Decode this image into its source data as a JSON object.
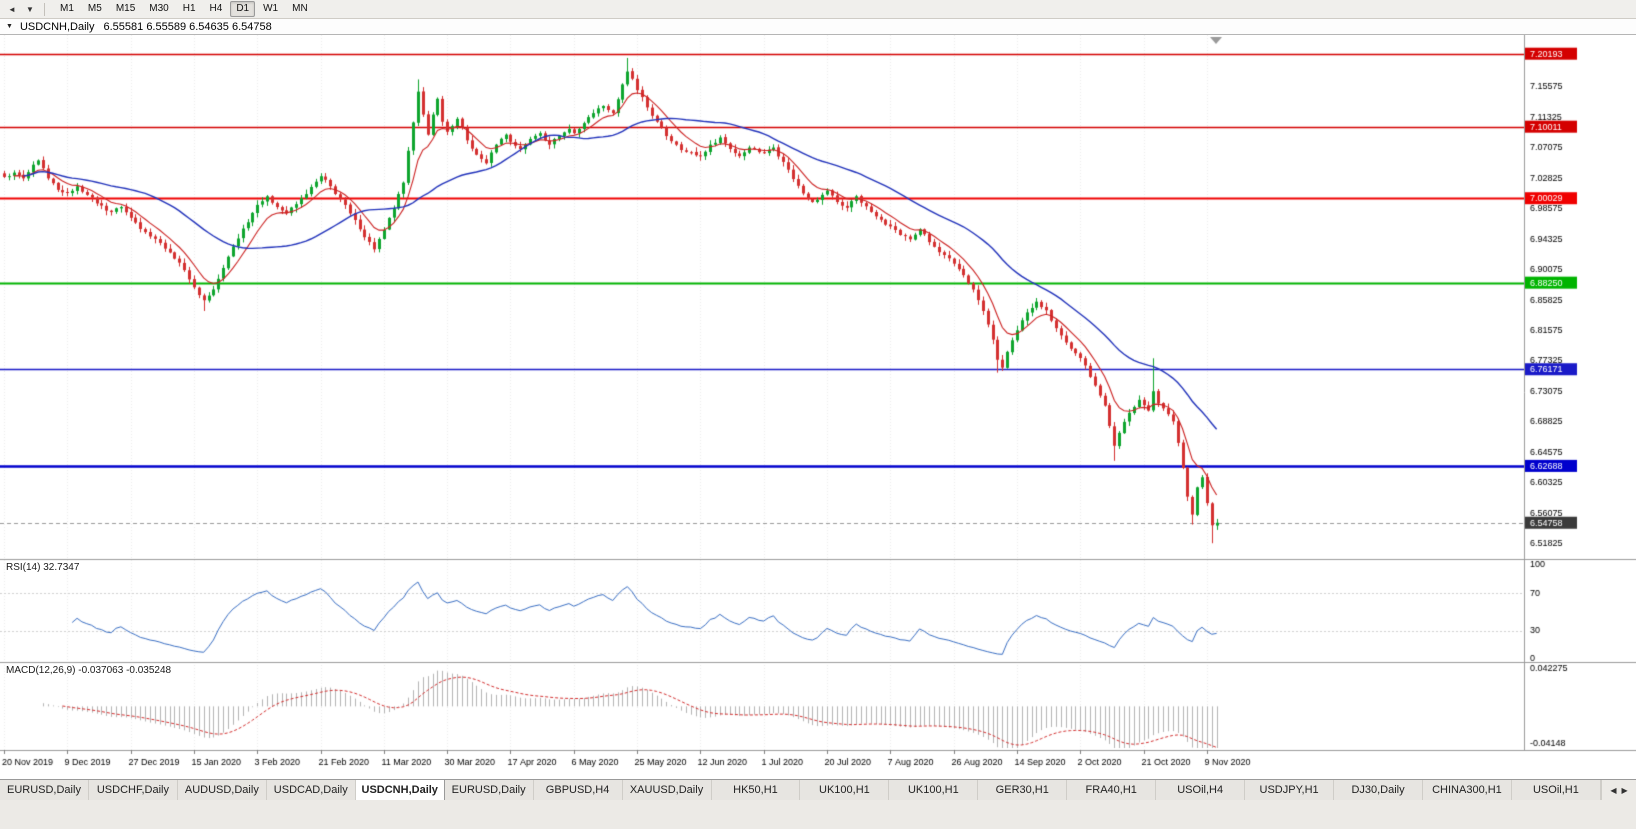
{
  "toolbar": {
    "left_icons": [
      {
        "name": "toolbar-arrow-left-icon",
        "glyph": "◄"
      },
      {
        "name": "toolbar-arrow-down-icon",
        "glyph": "▼"
      }
    ],
    "timeframes": [
      "M1",
      "M5",
      "M15",
      "M30",
      "H1",
      "H4",
      "D1",
      "W1",
      "MN"
    ],
    "active_timeframe": "D1"
  },
  "chart_window": {
    "collapse_icon": "▼",
    "title": "USDCNH,Daily",
    "ohlc": "6.55581 6.55589 6.54635 6.54758"
  },
  "chart_data": {
    "type": "candlestick",
    "symbol": "USDCNH",
    "timeframe": "Daily",
    "days": 250,
    "x_label_step_days": 13,
    "x_labels": [
      "20 Nov 2019",
      "9 Dec 2019",
      "27 Dec 2019",
      "15 Jan 2020",
      "3 Feb 2020",
      "21 Feb 2020",
      "11 Mar 2020",
      "30 Mar 2020",
      "17 Apr 2020",
      "6 May 2020",
      "25 May 2020",
      "12 Jun 2020",
      "1 Jul 2020",
      "20 Jul 2020",
      "7 Aug 2020",
      "26 Aug 2020",
      "14 Sep 2020",
      "2 Oct 2020",
      "21 Oct 2020",
      "9 Nov 2020"
    ],
    "price_range": {
      "top": 7.228,
      "bottom": 6.497
    },
    "y_ticks": [
      "7.15575",
      "7.11325",
      "7.07075",
      "7.02825",
      "6.98575",
      "6.94325",
      "6.90075",
      "6.85825",
      "6.81575",
      "6.77325",
      "6.73075",
      "6.68825",
      "6.64575",
      "6.60325",
      "6.56075",
      "6.51825"
    ],
    "close_anchors": [
      [
        0,
        7.03
      ],
      [
        2,
        7.036
      ],
      [
        4,
        7.028
      ],
      [
        7,
        7.053
      ],
      [
        9,
        7.028
      ],
      [
        11,
        7.012
      ],
      [
        13,
        7.008
      ],
      [
        15,
        7.017
      ],
      [
        17,
        7.005
      ],
      [
        19,
        6.993
      ],
      [
        22,
        6.981
      ],
      [
        24,
        6.988
      ],
      [
        26,
        6.973
      ],
      [
        29,
        6.953
      ],
      [
        32,
        6.938
      ],
      [
        35,
        6.916
      ],
      [
        37,
        6.9
      ],
      [
        39,
        6.876
      ],
      [
        41,
        6.858
      ],
      [
        43,
        6.873
      ],
      [
        45,
        6.903
      ],
      [
        47,
        6.933
      ],
      [
        49,
        6.958
      ],
      [
        52,
        6.991
      ],
      [
        54,
        7.003
      ],
      [
        56,
        6.988
      ],
      [
        58,
        6.979
      ],
      [
        60,
        6.992
      ],
      [
        62,
        7.006
      ],
      [
        65,
        7.031
      ],
      [
        67,
        7.017
      ],
      [
        69,
        6.999
      ],
      [
        71,
        6.979
      ],
      [
        73,
        6.957
      ],
      [
        76,
        6.929
      ],
      [
        78,
        6.956
      ],
      [
        80,
        6.986
      ],
      [
        82,
        7.022
      ],
      [
        84,
        7.106
      ],
      [
        85,
        7.149
      ],
      [
        86,
        7.117
      ],
      [
        87,
        7.089
      ],
      [
        88,
        7.117
      ],
      [
        89,
        7.139
      ],
      [
        90,
        7.107
      ],
      [
        91,
        7.093
      ],
      [
        93,
        7.111
      ],
      [
        95,
        7.081
      ],
      [
        97,
        7.061
      ],
      [
        99,
        7.049
      ],
      [
        101,
        7.075
      ],
      [
        103,
        7.089
      ],
      [
        104,
        7.079
      ],
      [
        106,
        7.069
      ],
      [
        108,
        7.083
      ],
      [
        110,
        7.091
      ],
      [
        112,
        7.075
      ],
      [
        114,
        7.087
      ],
      [
        116,
        7.097
      ],
      [
        117,
        7.091
      ],
      [
        119,
        7.105
      ],
      [
        121,
        7.119
      ],
      [
        123,
        7.129
      ],
      [
        125,
        7.119
      ],
      [
        127,
        7.159
      ],
      [
        128,
        7.177
      ],
      [
        129,
        7.167
      ],
      [
        130,
        7.151
      ],
      [
        132,
        7.127
      ],
      [
        134,
        7.107
      ],
      [
        136,
        7.087
      ],
      [
        138,
        7.075
      ],
      [
        140,
        7.065
      ],
      [
        143,
        7.059
      ],
      [
        145,
        7.075
      ],
      [
        147,
        7.085
      ],
      [
        149,
        7.069
      ],
      [
        151,
        7.059
      ],
      [
        153,
        7.071
      ],
      [
        156,
        7.063
      ],
      [
        158,
        7.071
      ],
      [
        160,
        7.051
      ],
      [
        162,
        7.027
      ],
      [
        164,
        7.007
      ],
      [
        166,
        6.995
      ],
      [
        168,
        7.005
      ],
      [
        169,
        7.011
      ],
      [
        171,
        6.995
      ],
      [
        173,
        6.987
      ],
      [
        175,
        7.003
      ],
      [
        177,
        6.989
      ],
      [
        179,
        6.975
      ],
      [
        182,
        6.961
      ],
      [
        184,
        6.949
      ],
      [
        186,
        6.943
      ],
      [
        188,
        6.957
      ],
      [
        190,
        6.939
      ],
      [
        192,
        6.925
      ],
      [
        195,
        6.909
      ],
      [
        197,
        6.893
      ],
      [
        199,
        6.873
      ],
      [
        201,
        6.843
      ],
      [
        203,
        6.803
      ],
      [
        204,
        6.775
      ],
      [
        205,
        6.764
      ],
      [
        206,
        6.786
      ],
      [
        208,
        6.816
      ],
      [
        210,
        6.841
      ],
      [
        212,
        6.856
      ],
      [
        214,
        6.844
      ],
      [
        216,
        6.819
      ],
      [
        218,
        6.799
      ],
      [
        220,
        6.784
      ],
      [
        222,
        6.767
      ],
      [
        224,
        6.739
      ],
      [
        226,
        6.711
      ],
      [
        228,
        6.655
      ],
      [
        229,
        6.673
      ],
      [
        231,
        6.701
      ],
      [
        233,
        6.719
      ],
      [
        235,
        6.704
      ],
      [
        236,
        6.731
      ],
      [
        237,
        6.714
      ],
      [
        239,
        6.699
      ],
      [
        240,
        6.689
      ],
      [
        241,
        6.659
      ],
      [
        242,
        6.624
      ],
      [
        243,
        6.584
      ],
      [
        244,
        6.559
      ],
      [
        245,
        6.597
      ],
      [
        246,
        6.611
      ],
      [
        247,
        6.575
      ],
      [
        248,
        6.544
      ],
      [
        249,
        6.5476
      ]
    ],
    "special_wicks": [
      {
        "day": 41,
        "low": 6.843
      },
      {
        "day": 85,
        "high": 7.166
      },
      {
        "day": 128,
        "high": 7.196
      },
      {
        "day": 204,
        "low": 6.757
      },
      {
        "day": 228,
        "low": 6.634
      },
      {
        "day": 236,
        "high": 6.777
      },
      {
        "day": 244,
        "low": 6.545
      },
      {
        "day": 248,
        "low": 6.519
      }
    ],
    "horizontal_lines": [
      {
        "price": 7.20193,
        "label": "7.20193",
        "color": "#d40000",
        "width": 1.4
      },
      {
        "price": 7.10011,
        "label": "7.10011",
        "color": "#d40000",
        "width": 1.4
      },
      {
        "price": 7.00029,
        "label": "7.00029",
        "color": "#f00000",
        "width": 2
      },
      {
        "price": 6.8825,
        "label": "6.88250",
        "color": "#00b400",
        "width": 2
      },
      {
        "price": 6.76171,
        "label": "6.76171",
        "color": "#1a1ac8",
        "width": 1.6
      },
      {
        "price": 6.62688,
        "label": "6.62688",
        "color": "#0000cd",
        "width": 2.6
      }
    ],
    "current_price": {
      "value": 6.54758,
      "label": "6.54758",
      "badge_color": "#3a3a3a"
    },
    "candle_colors": {
      "up": "#0ea52e",
      "down": "#d43030"
    },
    "moving_averages": [
      {
        "type": "ema",
        "period": 8,
        "color": "#cc2222"
      },
      {
        "type": "sma",
        "period": 30,
        "color": "#2233bb"
      }
    ],
    "indicators": [
      {
        "name": "RSI",
        "label": "RSI(14) 32.7347",
        "period": 14,
        "line_color": "#3a6fc4",
        "levels": [
          {
            "label": "100",
            "value": 100
          },
          {
            "label": "70",
            "value": 70
          },
          {
            "label": "30",
            "value": 30
          },
          {
            "label": "0",
            "value": 0
          }
        ]
      },
      {
        "name": "MACD",
        "label": "MACD(12,26,9) -0.037063 -0.035248",
        "params": [
          12,
          26,
          9
        ],
        "histogram_color": "#b4b4b4",
        "signal_color": "#d43030",
        "range": {
          "top": 0.0423,
          "bottom": -0.0415
        },
        "levels": [
          {
            "label": "0.042275",
            "value": 0.042275
          },
          {
            "label": "-0.04148",
            "value": -0.04148
          }
        ]
      }
    ]
  },
  "tab_bar": {
    "tabs": [
      "EURUSD,Daily",
      "USDCHF,Daily",
      "AUDUSD,Daily",
      "USDCAD,Daily",
      "USDCNH,Daily",
      "EURUSD,Daily",
      "GBPUSD,H4",
      "XAUUSD,Daily",
      "HK50,H1",
      "UK100,H1",
      "UK100,H1",
      "GER30,H1",
      "FRA40,H1",
      "USOil,H4",
      "USDJPY,H1",
      "DJ30,Daily",
      "CHINA300,H1",
      "USOil,H1"
    ],
    "active_index": 4,
    "scroll_icons": [
      {
        "name": "tab-scroll-left-icon",
        "glyph": "◀"
      },
      {
        "name": "tab-scroll-right-icon",
        "glyph": "▶"
      }
    ]
  }
}
